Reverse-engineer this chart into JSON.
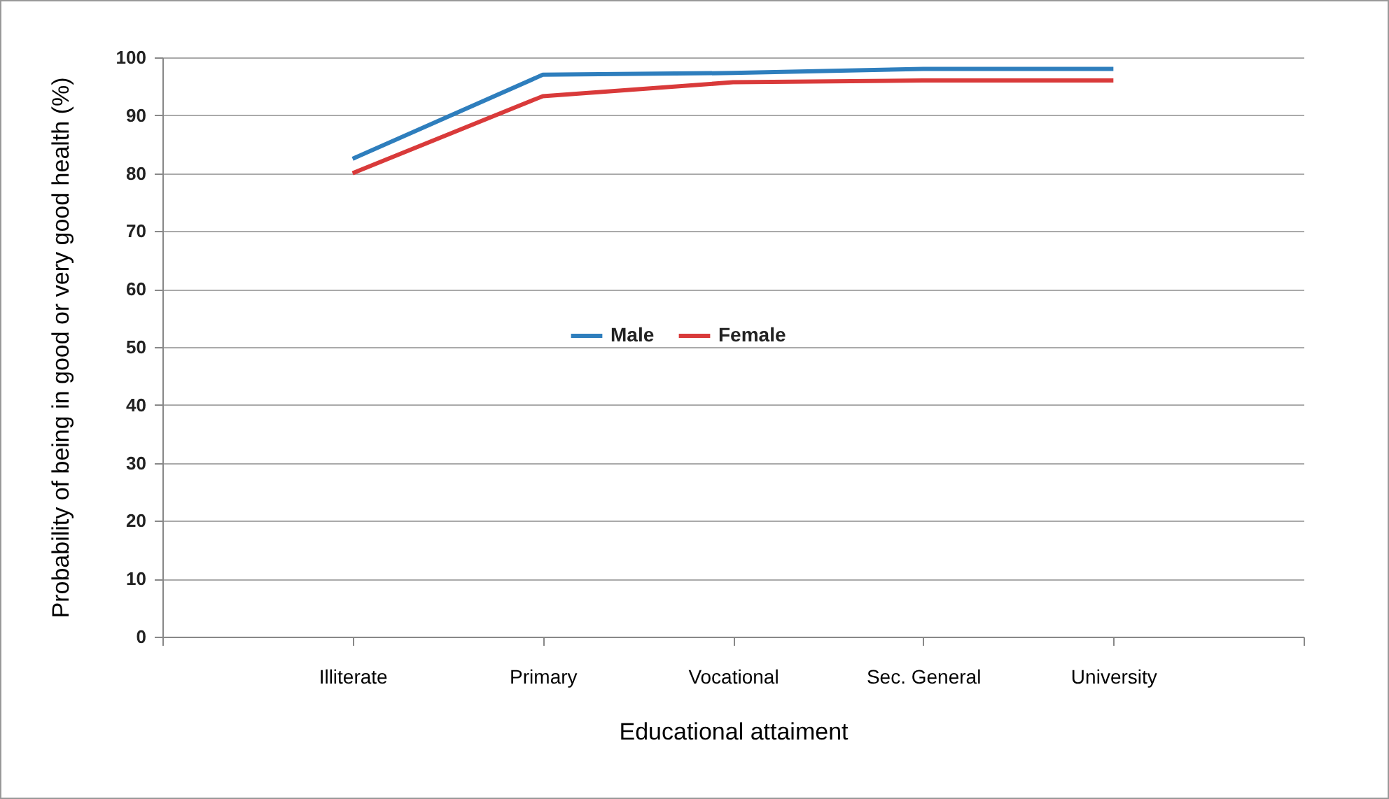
{
  "chart_data": {
    "type": "line",
    "xlabel": "Educational attaiment",
    "ylabel": "Probability of being in good or very good health (%)",
    "categories": [
      null,
      "Illiterate",
      "Primary",
      "Vocational",
      "Sec. General",
      "University",
      null
    ],
    "series": [
      {
        "name": "Male",
        "color": "#2e7ebd",
        "values": [
          null,
          82.5,
          97,
          97.3,
          98,
          98,
          null
        ]
      },
      {
        "name": "Female",
        "color": "#d93a3a",
        "values": [
          null,
          80,
          93.3,
          95.7,
          96,
          96,
          null
        ]
      }
    ],
    "ylim": [
      0,
      100
    ],
    "yticks": [
      0,
      10,
      20,
      30,
      40,
      50,
      60,
      70,
      80,
      90,
      100
    ],
    "grid": "y",
    "legend": "center",
    "line_style": "solid",
    "marker": "none"
  }
}
